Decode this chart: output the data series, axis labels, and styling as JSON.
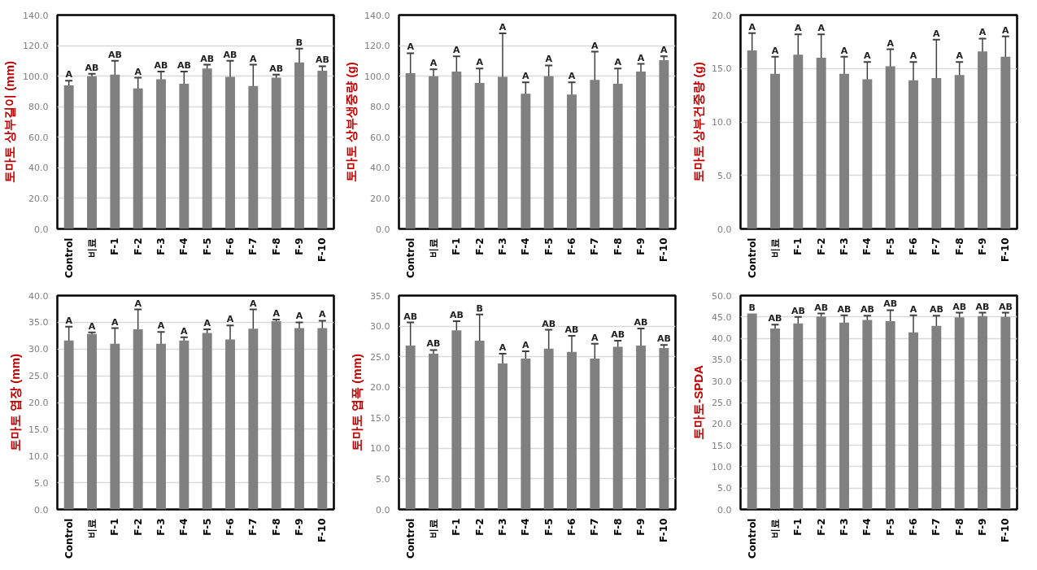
{
  "chart_data": [
    {
      "type": "bar",
      "ylabel": "토마토 상부길이 (mm)",
      "categories": [
        "Control",
        "비료",
        "F-1",
        "F-2",
        "F-3",
        "F-4",
        "F-5",
        "F-6",
        "F-7",
        "F-8",
        "F-9",
        "F-10"
      ],
      "color": "#808080",
      "values": [
        94,
        100,
        101,
        92,
        98,
        95,
        105,
        99.5,
        93.5,
        99,
        109,
        103.5
      ],
      "errors": [
        3,
        1.5,
        9,
        7,
        5,
        8,
        2.5,
        10.5,
        14,
        2,
        9,
        3
      ],
      "ylim": [
        0,
        140
      ],
      "yticks": [
        {
          "value": 0,
          "label": "0.0"
        },
        {
          "value": 20,
          "label": "20.0"
        },
        {
          "value": 40,
          "label": "40.0"
        },
        {
          "value": 60,
          "label": "60.0"
        },
        {
          "value": 80,
          "label": "80.0"
        },
        {
          "value": 100,
          "label": "100.0"
        },
        {
          "value": 120,
          "label": "120.0"
        },
        {
          "value": 140,
          "label": "140.0"
        }
      ],
      "grid": "y",
      "annotations": [
        {
          "text": "A",
          "x": "Control",
          "y": 97
        },
        {
          "text": "AB",
          "x": "비료",
          "y": 101.5
        },
        {
          "text": "AB",
          "x": "F-1",
          "y": 110
        },
        {
          "text": "A",
          "x": "F-2",
          "y": 99
        },
        {
          "text": "AB",
          "x": "F-3",
          "y": 103
        },
        {
          "text": "AB",
          "x": "F-4",
          "y": 103
        },
        {
          "text": "AB",
          "x": "F-5",
          "y": 107.5
        },
        {
          "text": "AB",
          "x": "F-6",
          "y": 110
        },
        {
          "text": "A",
          "x": "F-7",
          "y": 107.5
        },
        {
          "text": "AB",
          "x": "F-8",
          "y": 101
        },
        {
          "text": "B",
          "x": "F-9",
          "y": 118
        },
        {
          "text": "AB",
          "x": "F-10",
          "y": 106.5
        }
      ]
    },
    {
      "type": "bar",
      "ylabel": "토마토 상부생중량 (g)",
      "categories": [
        "Control",
        "비료",
        "F-1",
        "F-2",
        "F-3",
        "F-4",
        "F-5",
        "F-6",
        "F-7",
        "F-8",
        "F-9",
        "F-10"
      ],
      "color": "#808080",
      "values": [
        102,
        100,
        103,
        95.5,
        99.5,
        88.5,
        100,
        88,
        97.5,
        95,
        103,
        110.5
      ],
      "errors": [
        13,
        4.5,
        10,
        9.5,
        28.5,
        7.5,
        7,
        8,
        18.5,
        10,
        5,
        2.5
      ],
      "ylim": [
        0,
        140
      ],
      "yticks": [
        {
          "value": 0,
          "label": "0.0"
        },
        {
          "value": 20,
          "label": "20.0"
        },
        {
          "value": 40,
          "label": "40.0"
        },
        {
          "value": 60,
          "label": "60.0"
        },
        {
          "value": 80,
          "label": "80.0"
        },
        {
          "value": 100,
          "label": "100.0"
        },
        {
          "value": 120,
          "label": "120.0"
        },
        {
          "value": 140,
          "label": "140.0"
        }
      ],
      "grid": "y",
      "annotations": [
        {
          "text": "A",
          "x": "Control",
          "y": 115
        },
        {
          "text": "A",
          "x": "비료",
          "y": 104.5
        },
        {
          "text": "A",
          "x": "F-1",
          "y": 113
        },
        {
          "text": "A",
          "x": "F-2",
          "y": 105
        },
        {
          "text": "A",
          "x": "F-3",
          "y": 128
        },
        {
          "text": "A",
          "x": "F-4",
          "y": 96
        },
        {
          "text": "A",
          "x": "F-5",
          "y": 107
        },
        {
          "text": "A",
          "x": "F-6",
          "y": 96
        },
        {
          "text": "A",
          "x": "F-7",
          "y": 116
        },
        {
          "text": "A",
          "x": "F-8",
          "y": 105
        },
        {
          "text": "A",
          "x": "F-9",
          "y": 108
        },
        {
          "text": "A",
          "x": "F-10",
          "y": 113
        }
      ]
    },
    {
      "type": "bar",
      "ylabel": "토마토 상부건중량 (g)",
      "categories": [
        "Control",
        "비료",
        "F-1",
        "F-2",
        "F-3",
        "F-4",
        "F-5",
        "F-6",
        "F-7",
        "F-8",
        "F-9",
        "F-10"
      ],
      "color": "#808080",
      "values": [
        16.7,
        14.5,
        16.3,
        16,
        14.5,
        14,
        15.2,
        13.9,
        14.1,
        14.4,
        16.6,
        16.1
      ],
      "errors": [
        1.6,
        1.6,
        1.9,
        2.2,
        1.6,
        1.6,
        1.6,
        1.7,
        3.6,
        1.2,
        1.2,
        1.9
      ],
      "ylim": [
        0,
        20
      ],
      "yticks": [
        {
          "value": 0,
          "label": "0.0"
        },
        {
          "value": 5,
          "label": "5.0"
        },
        {
          "value": 10,
          "label": "10.0"
        },
        {
          "value": 15,
          "label": "15.0"
        },
        {
          "value": 20,
          "label": "20.0"
        }
      ],
      "grid": "y",
      "annotations": [
        {
          "text": "A",
          "x": "Control",
          "y": 18.3
        },
        {
          "text": "A",
          "x": "비료",
          "y": 16.1
        },
        {
          "text": "A",
          "x": "F-1",
          "y": 18.2
        },
        {
          "text": "A",
          "x": "F-2",
          "y": 18.2
        },
        {
          "text": "A",
          "x": "F-3",
          "y": 16.1
        },
        {
          "text": "A",
          "x": "F-4",
          "y": 15.6
        },
        {
          "text": "A",
          "x": "F-5",
          "y": 16.8
        },
        {
          "text": "A",
          "x": "F-6",
          "y": 15.6
        },
        {
          "text": "A",
          "x": "F-7",
          "y": 17.7
        },
        {
          "text": "A",
          "x": "F-8",
          "y": 15.6
        },
        {
          "text": "A",
          "x": "F-9",
          "y": 17.8
        },
        {
          "text": "A",
          "x": "F-10",
          "y": 18
        }
      ]
    },
    {
      "type": "bar",
      "ylabel": "토마토 엽장 (mm)",
      "categories": [
        "Control",
        "비료",
        "F-1",
        "F-2",
        "F-3",
        "F-4",
        "F-5",
        "F-6",
        "F-7",
        "F-8",
        "F-9",
        "F-10"
      ],
      "color": "#808080",
      "values": [
        31.6,
        32.8,
        31,
        33.7,
        31,
        31.6,
        33,
        31.8,
        33.8,
        35.2,
        33.9,
        33.9
      ],
      "errors": [
        2.6,
        0.3,
        2.9,
        3.7,
        2.2,
        0.6,
        0.7,
        2.6,
        3.6,
        0.3,
        1.1,
        1.4
      ],
      "ylim": [
        0,
        40
      ],
      "yticks": [
        {
          "value": 0,
          "label": "0.0"
        },
        {
          "value": 5,
          "label": "5.0"
        },
        {
          "value": 10,
          "label": "10.0"
        },
        {
          "value": 15,
          "label": "15.0"
        },
        {
          "value": 20,
          "label": "20.0"
        },
        {
          "value": 25,
          "label": "25.0"
        },
        {
          "value": 30,
          "label": "30.0"
        },
        {
          "value": 35,
          "label": "35.0"
        },
        {
          "value": 40,
          "label": "40.0"
        }
      ],
      "grid": "y",
      "annotations": [
        {
          "text": "A",
          "x": "Control",
          "y": 34.2
        },
        {
          "text": "A",
          "x": "비료",
          "y": 33.1
        },
        {
          "text": "A",
          "x": "F-1",
          "y": 33.9
        },
        {
          "text": "A",
          "x": "F-2",
          "y": 37.4
        },
        {
          "text": "A",
          "x": "F-3",
          "y": 33.2
        },
        {
          "text": "A",
          "x": "F-4",
          "y": 32.2
        },
        {
          "text": "A",
          "x": "F-5",
          "y": 33.7
        },
        {
          "text": "A",
          "x": "F-6",
          "y": 34.4
        },
        {
          "text": "A",
          "x": "F-7",
          "y": 37.4
        },
        {
          "text": "A",
          "x": "F-8",
          "y": 35.5
        },
        {
          "text": "A",
          "x": "F-9",
          "y": 35
        },
        {
          "text": "A",
          "x": "F-10",
          "y": 35.3
        }
      ]
    },
    {
      "type": "bar",
      "ylabel": "토마토 엽폭 (mm)",
      "categories": [
        "Control",
        "비료",
        "F-1",
        "F-2",
        "F-3",
        "F-4",
        "F-5",
        "F-6",
        "F-7",
        "F-8",
        "F-9",
        "F-10"
      ],
      "color": "#808080",
      "values": [
        26.8,
        25.5,
        29.3,
        27.6,
        23.9,
        24.7,
        26.3,
        25.8,
        24.7,
        26.6,
        26.8,
        26.4
      ],
      "errors": [
        3.8,
        0.6,
        1.5,
        4.3,
        1.6,
        1.2,
        3.1,
        2.6,
        2.4,
        1,
        2.8,
        0.5
      ],
      "ylim": [
        0,
        35
      ],
      "yticks": [
        {
          "value": 0,
          "label": "0.0"
        },
        {
          "value": 5,
          "label": "5.0"
        },
        {
          "value": 10,
          "label": "10.0"
        },
        {
          "value": 15,
          "label": "15.0"
        },
        {
          "value": 20,
          "label": "20.0"
        },
        {
          "value": 25,
          "label": "25.0"
        },
        {
          "value": 30,
          "label": "30.0"
        },
        {
          "value": 35,
          "label": "35.0"
        }
      ],
      "grid": "y",
      "annotations": [
        {
          "text": "AB",
          "x": "Control",
          "y": 30.6
        },
        {
          "text": "AB",
          "x": "비료",
          "y": 26.1
        },
        {
          "text": "AB",
          "x": "F-1",
          "y": 30.8
        },
        {
          "text": "B",
          "x": "F-2",
          "y": 31.9
        },
        {
          "text": "A",
          "x": "F-3",
          "y": 25.5
        },
        {
          "text": "A",
          "x": "F-4",
          "y": 25.9
        },
        {
          "text": "AB",
          "x": "F-5",
          "y": 29.4
        },
        {
          "text": "AB",
          "x": "F-6",
          "y": 28.4
        },
        {
          "text": "A",
          "x": "F-7",
          "y": 27.1
        },
        {
          "text": "AB",
          "x": "F-8",
          "y": 27.6
        },
        {
          "text": "AB",
          "x": "F-9",
          "y": 29.6
        },
        {
          "text": "AB",
          "x": "F-10",
          "y": 26.9
        }
      ]
    },
    {
      "type": "bar",
      "ylabel": "토마토-SPDA",
      "categories": [
        "Control",
        "비료",
        "F-1",
        "F-2",
        "F-3",
        "F-4",
        "F-5",
        "F-6",
        "F-7",
        "F-8",
        "F-9",
        "F-10"
      ],
      "color": "#808080",
      "values": [
        45.8,
        42.3,
        43.5,
        45.1,
        43.7,
        44.3,
        44,
        41.4,
        42.9,
        44.9,
        45.2,
        45
      ],
      "errors": [
        null,
        0.9,
        1.5,
        0.7,
        1.7,
        1,
        2.6,
        4,
        2.4,
        1.1,
        0.8,
        1
      ],
      "ylim": [
        0,
        50
      ],
      "yticks": [
        {
          "value": 0,
          "label": "0.0"
        },
        {
          "value": 5,
          "label": "5.0"
        },
        {
          "value": 10,
          "label": "10.0"
        },
        {
          "value": 15,
          "label": "15.0"
        },
        {
          "value": 20,
          "label": "20.0"
        },
        {
          "value": 25,
          "label": "25.0"
        },
        {
          "value": 30,
          "label": "30.0"
        },
        {
          "value": 35,
          "label": "35.0"
        },
        {
          "value": 40,
          "label": "40.0"
        },
        {
          "value": 45,
          "label": "45.0"
        },
        {
          "value": 50,
          "label": "50.0"
        }
      ],
      "grid": "y",
      "annotations": [
        {
          "text": "B",
          "x": "Control",
          "y": 45.8
        },
        {
          "text": "AB",
          "x": "비료",
          "y": 43.2
        },
        {
          "text": "AB",
          "x": "F-1",
          "y": 45
        },
        {
          "text": "AB",
          "x": "F-2",
          "y": 45.8
        },
        {
          "text": "AB",
          "x": "F-3",
          "y": 45.4
        },
        {
          "text": "AB",
          "x": "F-4",
          "y": 45.3
        },
        {
          "text": "AB",
          "x": "F-5",
          "y": 46.6
        },
        {
          "text": "A",
          "x": "F-6",
          "y": 45.4
        },
        {
          "text": "AB",
          "x": "F-7",
          "y": 45.3
        },
        {
          "text": "AB",
          "x": "F-8",
          "y": 46
        },
        {
          "text": "AB",
          "x": "F-9",
          "y": 46
        },
        {
          "text": "AB",
          "x": "F-10",
          "y": 46
        }
      ]
    }
  ]
}
